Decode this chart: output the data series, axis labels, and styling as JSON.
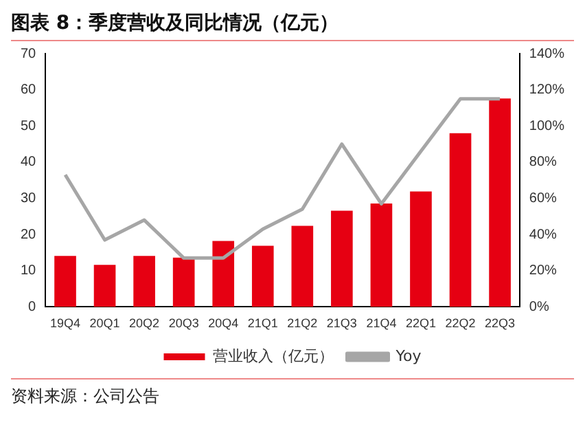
{
  "chart_data": {
    "type": "bar",
    "title": "图表 8：季度营收及同比情况（亿元）",
    "categories": [
      "19Q4",
      "20Q1",
      "20Q2",
      "20Q3",
      "20Q4",
      "21Q1",
      "21Q2",
      "21Q3",
      "21Q4",
      "22Q1",
      "22Q2",
      "22Q3"
    ],
    "series": [
      {
        "name": "营业收入（亿元）",
        "color": "#e60012",
        "values": [
          14.1,
          11.6,
          14.1,
          13.6,
          18.2,
          16.9,
          22.4,
          26.6,
          28.6,
          31.9,
          48.0,
          57.6
        ]
      },
      {
        "name": "Yoy",
        "type": "line",
        "axis": "y2",
        "color": "#a6a6a6",
        "values": [
          73,
          37,
          48,
          27,
          27,
          43,
          54,
          90,
          57,
          86,
          115,
          115
        ]
      }
    ],
    "ylim": [
      0,
      70
    ],
    "yticks": [
      0,
      10,
      20,
      30,
      40,
      50,
      60,
      70
    ],
    "y2lim": [
      0,
      140
    ],
    "y2ticks": [
      {
        "value": 0,
        "label": "0%"
      },
      {
        "value": 20,
        "label": "20%"
      },
      {
        "value": 40,
        "label": "40%"
      },
      {
        "value": 60,
        "label": "60%"
      },
      {
        "value": 80,
        "label": "80%"
      },
      {
        "value": 100,
        "label": "100%"
      },
      {
        "value": 120,
        "label": "120%"
      },
      {
        "value": 140,
        "label": "140%"
      }
    ],
    "grid": false,
    "legend": "bottom",
    "marker": "none",
    "line_style": "solid",
    "annotations": [
      "资料来源：公司公告"
    ]
  }
}
